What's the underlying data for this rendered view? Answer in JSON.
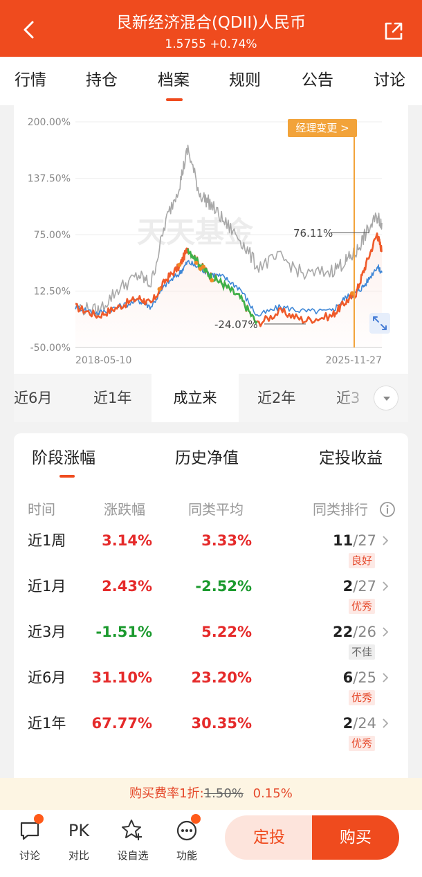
{
  "header": {
    "title": "艮新经济混合(QDII)人民币",
    "nav": "1.5755",
    "change": "+0.74%"
  },
  "tabs": [
    "行情",
    "持仓",
    "档案",
    "规则",
    "公告",
    "讨论"
  ],
  "active_tab": 2,
  "chart": {
    "manager_change": "经理变更 >",
    "watermark": "天天基金",
    "start_date": "2018-05-10",
    "end_date": "2025-11-27",
    "y_ticks": [
      "200.00%",
      "137.50%",
      "75.00%",
      "12.50%",
      "-50.00%"
    ],
    "max_label": "76.11%",
    "min_label": "-24.07%"
  },
  "chart_data": {
    "type": "line",
    "x_range": [
      "2018-05-10",
      "2025-11-27"
    ],
    "ylim": [
      -50,
      200
    ],
    "series": [
      {
        "x": [
          "2018-05-10",
          "2018-12-01",
          "2019-06-01",
          "2019-12-01",
          "2020-03-20",
          "2020-08-01",
          "2020-12-01",
          "2021-02-15",
          "2021-06-01",
          "2021-09-01",
          "2022-01-01",
          "2022-06-01",
          "2022-10-31",
          "2023-06-01",
          "2024-01-01",
          "2024-09-01",
          "2025-01-01",
          "2025-04-08",
          "2025-07-01",
          "2025-10-15",
          "2025-11-27"
        ],
        "values": [
          -5,
          -15,
          -5,
          5,
          -2,
          25,
          40,
          60,
          42,
          30,
          20,
          5,
          -24,
          -10,
          -20,
          -15,
          0,
          10,
          40,
          76,
          57
        ]
      },
      {
        "x": [
          "2018-05-10",
          "2018-12-01",
          "2019-06-01",
          "2019-12-01",
          "2020-03-20",
          "2020-08-01",
          "2020-12-01",
          "2021-02-15",
          "2021-06-01",
          "2021-09-01",
          "2022-01-01",
          "2022-06-01",
          "2022-10-31",
          "2023-06-01",
          "2024-01-01",
          "2024-09-01",
          "2025-01-01",
          "2025-04-08",
          "2025-07-01",
          "2025-10-15",
          "2025-11-27"
        ],
        "values": [
          -5,
          -12,
          -5,
          2,
          -5,
          20,
          32,
          45,
          38,
          32,
          28,
          15,
          -15,
          -5,
          -10,
          -10,
          5,
          10,
          20,
          40,
          33
        ]
      },
      {
        "x": [
          "2018-05-10",
          "2018-12-01",
          "2019-06-01",
          "2019-12-01",
          "2020-03-20",
          "2020-08-01",
          "2020-12-01",
          "2021-02-15",
          "2021-06-01",
          "2021-09-01",
          "2022-01-01",
          "2022-06-01",
          "2022-10-31",
          "2023-06-01",
          "2024-01-01",
          "2024-09-01",
          "2025-01-01",
          "2025-04-08",
          "2025-07-01",
          "2025-10-15",
          "2025-11-27"
        ],
        "values": [
          -5,
          -10,
          15,
          30,
          20,
          90,
          130,
          170,
          120,
          110,
          90,
          70,
          40,
          50,
          30,
          35,
          45,
          55,
          75,
          95,
          88
        ]
      }
    ]
  },
  "ranges": [
    "近6月",
    "近1年",
    "成立来",
    "近2年",
    "近3"
  ],
  "active_range": 2,
  "perf_tabs": [
    "阶段涨幅",
    "历史净值",
    "定投收益"
  ],
  "table_headers": [
    "时间",
    "涨跌幅",
    "同类平均",
    "同类排行"
  ],
  "rows": [
    {
      "period": "近1周",
      "change": "3.14%",
      "avg": "3.33%",
      "rank": "11",
      "total": "/27",
      "badge": "良好"
    },
    {
      "period": "近1月",
      "change": "2.43%",
      "avg": "-2.52%",
      "rank": "2",
      "total": "/27",
      "badge": "优秀"
    },
    {
      "period": "近3月",
      "change": "-1.51%",
      "avg": "5.22%",
      "rank": "22",
      "total": "/26",
      "badge": "不佳"
    },
    {
      "period": "近6月",
      "change": "31.10%",
      "avg": "23.20%",
      "rank": "6",
      "total": "/25",
      "badge": "优秀"
    },
    {
      "period": "近1年",
      "change": "67.77%",
      "avg": "30.35%",
      "rank": "2",
      "total": "/24",
      "badge": "优秀"
    }
  ],
  "fee": {
    "label": "购买费率1折:",
    "original": "1.50%",
    "current": "0.15%"
  },
  "bottom": {
    "discuss": "讨论",
    "pk_icon": "PK",
    "pk": "对比",
    "watch": "设自选",
    "func": "功能",
    "ding": "定投",
    "buy": "购买"
  }
}
